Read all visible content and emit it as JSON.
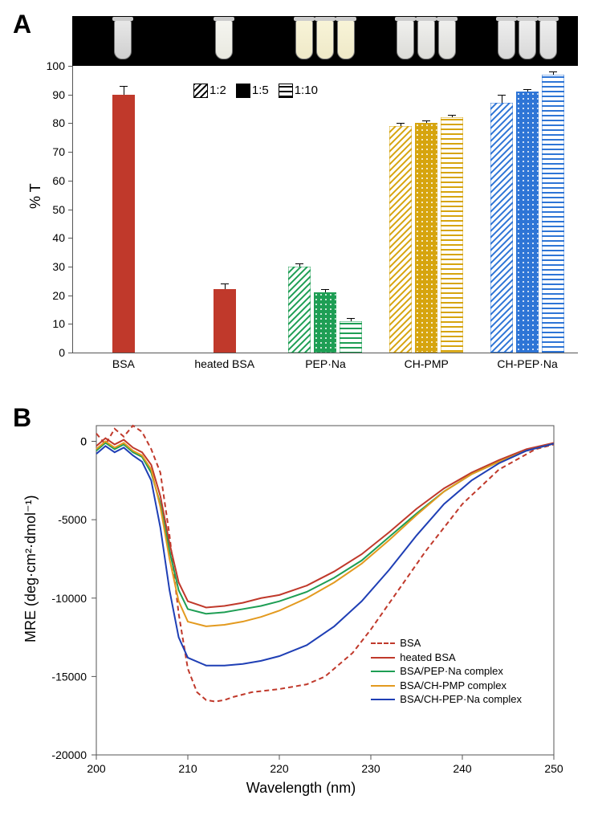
{
  "panelA": {
    "label": "A",
    "ylabel": "% T",
    "ylim": [
      0,
      100
    ],
    "ytick_step": 10,
    "legend": [
      {
        "pattern": "diag",
        "text": "1:2"
      },
      {
        "pattern": "solid",
        "text": "1:5"
      },
      {
        "pattern": "hstripe",
        "text": "1:10"
      }
    ],
    "background_color": "#ffffff",
    "axis_color": "#555555",
    "label_fontsize": 14,
    "axis_fontsize": 18,
    "categories": [
      {
        "name": "BSA",
        "color": "#c0392b",
        "tube_count": 1,
        "tube_class": "clear",
        "bars": [
          {
            "value": 90,
            "err": 3,
            "fill": "solid"
          }
        ]
      },
      {
        "name": "heated BSA",
        "color": "#c0392b",
        "tube_count": 1,
        "tube_class": "milky",
        "bars": [
          {
            "value": 22,
            "err": 2,
            "fill": "solid"
          }
        ]
      },
      {
        "name": "PEP·Na",
        "color": "#1e9e54",
        "color_key": "green",
        "tube_count": 3,
        "tube_class": "turbid",
        "bars": [
          {
            "value": 30,
            "err": 1,
            "fill": "diag"
          },
          {
            "value": 21,
            "err": 1,
            "fill": "dots"
          },
          {
            "value": 11,
            "err": 1,
            "fill": "hstripe"
          }
        ]
      },
      {
        "name": "CH-PMP",
        "color": "#d6a40e",
        "color_key": "gold",
        "tube_count": 3,
        "tube_class": "translucent",
        "bars": [
          {
            "value": 79,
            "err": 1,
            "fill": "diag"
          },
          {
            "value": 80,
            "err": 1,
            "fill": "dots"
          },
          {
            "value": 82,
            "err": 1,
            "fill": "hstripe"
          }
        ]
      },
      {
        "name": "CH-PEP·Na",
        "color": "#2e75d6",
        "color_key": "blue",
        "tube_count": 3,
        "tube_class": "vclear",
        "bars": [
          {
            "value": 87,
            "err": 3,
            "fill": "diag"
          },
          {
            "value": 91,
            "err": 1,
            "fill": "dots"
          },
          {
            "value": 97,
            "err": 1,
            "fill": "hstripe"
          }
        ]
      }
    ]
  },
  "panelB": {
    "label": "B",
    "xlabel": "Wavelength (nm)",
    "ylabel": "MRE (deg·cm²·dmol⁻¹)",
    "xlim": [
      200,
      250
    ],
    "ylim": [
      -20000,
      1000
    ],
    "xtick_step": 10,
    "ytick_step": 5000,
    "xtick_extra": [
      0
    ],
    "background_color": "#ffffff",
    "axis_color": "#555555",
    "series": [
      {
        "name": "BSA",
        "color": "#c0392b",
        "dash": "6,4",
        "width": 2,
        "points": [
          [
            200,
            500
          ],
          [
            201,
            -200
          ],
          [
            202,
            800
          ],
          [
            203,
            300
          ],
          [
            204,
            1000
          ],
          [
            205,
            600
          ],
          [
            206,
            -500
          ],
          [
            207,
            -2000
          ],
          [
            208,
            -6000
          ],
          [
            209,
            -11000
          ],
          [
            210,
            -14500
          ],
          [
            211,
            -16000
          ],
          [
            212,
            -16500
          ],
          [
            213,
            -16600
          ],
          [
            214,
            -16500
          ],
          [
            215,
            -16300
          ],
          [
            217,
            -16000
          ],
          [
            220,
            -15800
          ],
          [
            223,
            -15500
          ],
          [
            225,
            -15000
          ],
          [
            228,
            -13500
          ],
          [
            230,
            -12000
          ],
          [
            233,
            -9500
          ],
          [
            236,
            -7000
          ],
          [
            240,
            -4000
          ],
          [
            244,
            -1800
          ],
          [
            248,
            -500
          ],
          [
            250,
            -200
          ]
        ]
      },
      {
        "name": "heated BSA",
        "color": "#c0392b",
        "dash": "",
        "width": 2,
        "points": [
          [
            200,
            -300
          ],
          [
            201,
            200
          ],
          [
            202,
            -200
          ],
          [
            203,
            100
          ],
          [
            204,
            -400
          ],
          [
            205,
            -700
          ],
          [
            206,
            -1500
          ],
          [
            207,
            -3500
          ],
          [
            208,
            -6500
          ],
          [
            209,
            -9000
          ],
          [
            210,
            -10200
          ],
          [
            212,
            -10600
          ],
          [
            214,
            -10500
          ],
          [
            216,
            -10300
          ],
          [
            218,
            -10000
          ],
          [
            220,
            -9800
          ],
          [
            223,
            -9200
          ],
          [
            226,
            -8300
          ],
          [
            229,
            -7200
          ],
          [
            232,
            -5800
          ],
          [
            235,
            -4300
          ],
          [
            238,
            -3000
          ],
          [
            241,
            -2000
          ],
          [
            244,
            -1200
          ],
          [
            247,
            -500
          ],
          [
            250,
            -100
          ]
        ]
      },
      {
        "name": "BSA/PEP·Na complex",
        "color": "#1e9e54",
        "dash": "",
        "width": 2,
        "points": [
          [
            200,
            -600
          ],
          [
            201,
            -100
          ],
          [
            202,
            -500
          ],
          [
            203,
            -200
          ],
          [
            204,
            -700
          ],
          [
            205,
            -1000
          ],
          [
            206,
            -2000
          ],
          [
            207,
            -4000
          ],
          [
            208,
            -7000
          ],
          [
            209,
            -9500
          ],
          [
            210,
            -10700
          ],
          [
            212,
            -11000
          ],
          [
            214,
            -10900
          ],
          [
            216,
            -10700
          ],
          [
            218,
            -10500
          ],
          [
            220,
            -10200
          ],
          [
            223,
            -9600
          ],
          [
            226,
            -8700
          ],
          [
            229,
            -7600
          ],
          [
            232,
            -6100
          ],
          [
            235,
            -4600
          ],
          [
            238,
            -3200
          ],
          [
            241,
            -2100
          ],
          [
            244,
            -1300
          ],
          [
            247,
            -600
          ],
          [
            250,
            -150
          ]
        ]
      },
      {
        "name": "BSA/CH-PMP complex",
        "color": "#e39a1f",
        "dash": "",
        "width": 2,
        "points": [
          [
            200,
            -500
          ],
          [
            201,
            0
          ],
          [
            202,
            -400
          ],
          [
            203,
            -100
          ],
          [
            204,
            -600
          ],
          [
            205,
            -900
          ],
          [
            206,
            -1800
          ],
          [
            207,
            -4200
          ],
          [
            208,
            -7500
          ],
          [
            209,
            -10200
          ],
          [
            210,
            -11500
          ],
          [
            212,
            -11800
          ],
          [
            214,
            -11700
          ],
          [
            216,
            -11500
          ],
          [
            218,
            -11200
          ],
          [
            220,
            -10800
          ],
          [
            223,
            -10000
          ],
          [
            226,
            -9000
          ],
          [
            229,
            -7800
          ],
          [
            232,
            -6300
          ],
          [
            235,
            -4700
          ],
          [
            238,
            -3200
          ],
          [
            241,
            -2100
          ],
          [
            244,
            -1300
          ],
          [
            247,
            -600
          ],
          [
            250,
            -150
          ]
        ]
      },
      {
        "name": "BSA/CH-PEP·Na complex",
        "color": "#1f3fb5",
        "dash": "",
        "width": 2,
        "points": [
          [
            200,
            -800
          ],
          [
            201,
            -300
          ],
          [
            202,
            -700
          ],
          [
            203,
            -400
          ],
          [
            204,
            -900
          ],
          [
            205,
            -1300
          ],
          [
            206,
            -2500
          ],
          [
            207,
            -5500
          ],
          [
            208,
            -9500
          ],
          [
            209,
            -12500
          ],
          [
            210,
            -13800
          ],
          [
            212,
            -14300
          ],
          [
            214,
            -14300
          ],
          [
            216,
            -14200
          ],
          [
            218,
            -14000
          ],
          [
            220,
            -13700
          ],
          [
            223,
            -13000
          ],
          [
            226,
            -11800
          ],
          [
            229,
            -10200
          ],
          [
            232,
            -8200
          ],
          [
            235,
            -6000
          ],
          [
            238,
            -4000
          ],
          [
            241,
            -2500
          ],
          [
            244,
            -1400
          ],
          [
            247,
            -600
          ],
          [
            250,
            -150
          ]
        ]
      }
    ]
  }
}
